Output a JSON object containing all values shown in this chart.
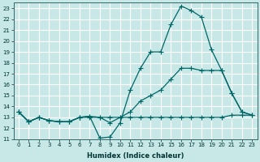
{
  "xlabel": "Humidex (Indice chaleur)",
  "bg_color": "#c8e8e8",
  "grid_color": "#ffffff",
  "line_color": "#006666",
  "xlim": [
    -0.5,
    23.5
  ],
  "ylim": [
    11,
    23.5
  ],
  "yticks": [
    11,
    12,
    13,
    14,
    15,
    16,
    17,
    18,
    19,
    20,
    21,
    22,
    23
  ],
  "xticks": [
    0,
    1,
    2,
    3,
    4,
    5,
    6,
    7,
    8,
    9,
    10,
    11,
    12,
    13,
    14,
    15,
    16,
    17,
    18,
    19,
    20,
    21,
    22,
    23
  ],
  "line1_x": [
    0,
    1,
    2,
    3,
    4,
    5,
    6,
    7,
    8,
    9,
    10,
    11,
    12,
    13,
    14,
    15,
    16,
    17,
    18,
    19,
    20,
    21,
    22,
    23
  ],
  "line1_y": [
    13.5,
    12.6,
    13.0,
    12.7,
    12.6,
    12.6,
    13.0,
    13.1,
    11.1,
    11.2,
    12.5,
    15.5,
    17.5,
    19.0,
    19.0,
    21.5,
    23.2,
    22.8,
    22.2,
    19.2,
    17.3,
    15.2,
    13.5,
    13.2
  ],
  "line2_x": [
    0,
    1,
    2,
    3,
    4,
    5,
    6,
    7,
    8,
    9,
    10,
    11,
    12,
    13,
    14,
    15,
    16,
    17,
    18,
    19,
    20,
    21,
    22,
    23
  ],
  "line2_y": [
    13.5,
    12.6,
    13.0,
    12.7,
    12.6,
    12.6,
    13.0,
    13.1,
    13.0,
    12.5,
    13.0,
    13.5,
    14.5,
    15.0,
    15.5,
    16.5,
    17.5,
    17.5,
    17.3,
    17.3,
    17.3,
    15.2,
    13.5,
    13.2
  ],
  "line3_x": [
    0,
    1,
    2,
    3,
    4,
    5,
    6,
    7,
    8,
    9,
    10,
    11,
    12,
    13,
    14,
    15,
    16,
    17,
    18,
    19,
    20,
    21,
    22,
    23
  ],
  "line3_y": [
    13.5,
    12.6,
    13.0,
    12.7,
    12.6,
    12.6,
    13.0,
    13.0,
    13.0,
    13.0,
    13.0,
    13.0,
    13.0,
    13.0,
    13.0,
    13.0,
    13.0,
    13.0,
    13.0,
    13.0,
    13.0,
    13.2,
    13.2,
    13.2
  ]
}
